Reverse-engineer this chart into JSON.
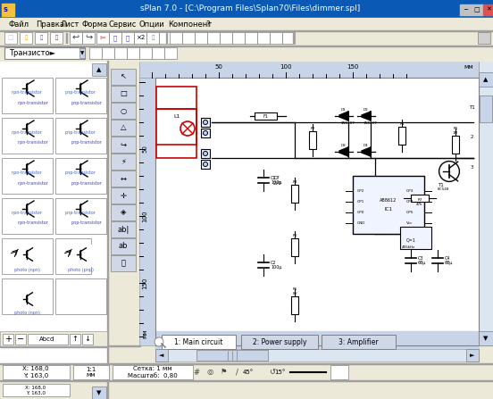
{
  "title": "sPlan 7.0 - [C:\\Program Files\\Splan70\\Files\\dimmer.spl]",
  "menu_items": [
    "Файл",
    "Правка",
    "Лист",
    "Форма",
    "Сервис",
    "Опции",
    "Компонент",
    "?"
  ],
  "tab_labels": [
    "1: Main circuit",
    "2: Power supply",
    "3: Amplifier"
  ],
  "status_left": "X: 168,0\nY: 163,0",
  "status_scale": "1:1\nмм",
  "status_grid": "Сетка: 1 мм\nМасштаб:  0,80",
  "status_angles": "45°    15°",
  "combo_text": "Транзисто►",
  "titlebar_bg": "#0a5ab5",
  "titlebar_text": "#ffffff",
  "window_bg": "#ece9d8",
  "canvas_bg": "#dce6f0",
  "schematic_bg": "#ffffff",
  "menubar_bg": "#ece9d8",
  "toolbar_bg": "#ece9d8",
  "sidebar_bg": "#dce6f0",
  "left_panel_bg": "#ffffff",
  "statusbar_bg": "#ece9d8",
  "tab_active_bg": "#ffffff",
  "tab_inactive_bg": "#d0d8e8",
  "border_color": "#808080",
  "grid_ruler_color": "#c0c8d8",
  "schematic_line_color": "#000000",
  "schematic_red_color": "#cc0000",
  "ruler_bg": "#c8d4e8",
  "ruler_text": "#000000",
  "scrollbar_bg": "#dce6f0",
  "highlight_blue": "#316ac5"
}
